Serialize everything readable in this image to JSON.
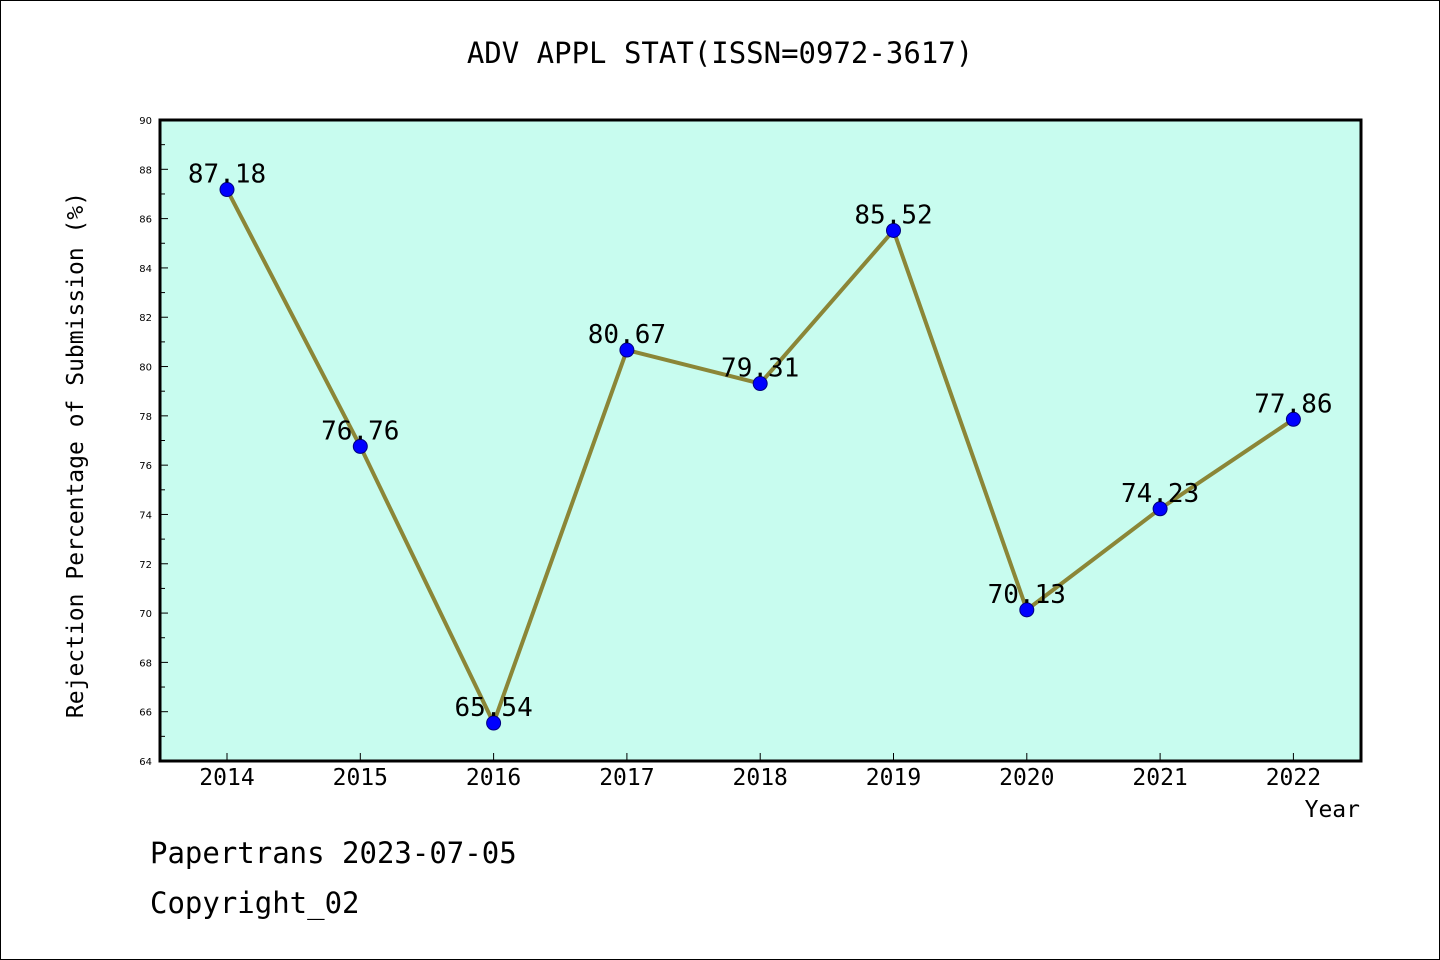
{
  "colors": {
    "plot_background": "#c8fcef",
    "line": "#8b8637",
    "marker": "#0000ff",
    "axis": "#000000"
  },
  "chart_data": {
    "type": "line",
    "title": "ADV APPL STAT(ISSN=0972-3617)",
    "xlabel": "Year",
    "ylabel": "Rejection Percentage of Submission (%)",
    "categories": [
      "2014",
      "2015",
      "2016",
      "2017",
      "2018",
      "2019",
      "2020",
      "2021",
      "2022"
    ],
    "series": [
      {
        "values": [
          87.18,
          76.76,
          65.54,
          80.67,
          79.31,
          85.52,
          70.13,
          74.23,
          77.86
        ],
        "labels": [
          "87.18",
          "76.76",
          "65.54",
          "80.67",
          "79.31",
          "85.52",
          "70.13",
          "74.23",
          "77.86"
        ]
      }
    ],
    "ylim": [
      64,
      90
    ],
    "yticks": [
      "64",
      "66",
      "68",
      "70",
      "72",
      "74",
      "76",
      "78",
      "80",
      "82",
      "84",
      "86",
      "88",
      "90"
    ],
    "grid": false,
    "legend": "none"
  },
  "footer": {
    "line1": "Papertrans 2023-07-05",
    "line2": "Copyright_02"
  }
}
